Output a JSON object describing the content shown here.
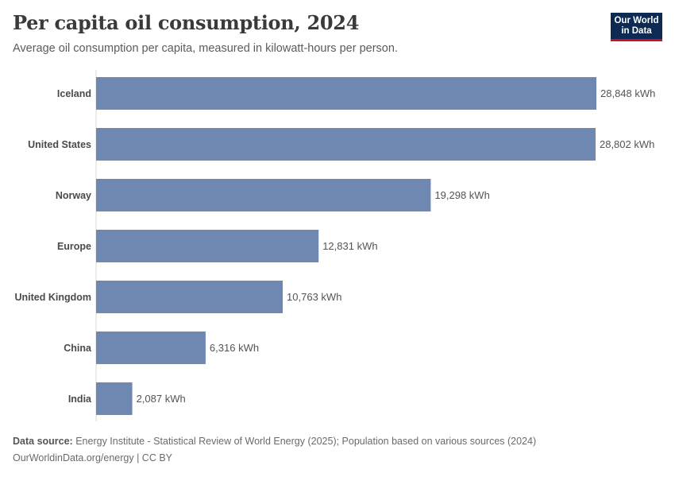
{
  "header": {
    "title": "Per capita oil consumption, 2024",
    "subtitle": "Average oil consumption per capita, measured in kilowatt-hours per person."
  },
  "logo": {
    "line1": "Our World",
    "line2": "in Data"
  },
  "footer": {
    "source_label": "Data source:",
    "source_text": "Energy Institute - Statistical Review of World Energy (2025); Population based on various sources (2024)",
    "credit": "OurWorldinData.org/energy | CC BY"
  },
  "colors": {
    "bar": "#6f88b1",
    "axis": "#d8d8d8",
    "logo_bg": "#0d2a52",
    "logo_accent": "#c8102e"
  },
  "chart_data": {
    "type": "bar",
    "orientation": "horizontal",
    "title": "Per capita oil consumption, 2024",
    "subtitle": "Average oil consumption per capita, measured in kilowatt-hours per person.",
    "unit": "kWh",
    "categories": [
      "Iceland",
      "United States",
      "Norway",
      "Europe",
      "United Kingdom",
      "China",
      "India"
    ],
    "values": [
      28848,
      28802,
      19298,
      12831,
      10763,
      6316,
      2087
    ],
    "value_labels": [
      "28,848 kWh",
      "28,802 kWh",
      "19,298 kWh",
      "12,831 kWh",
      "10,763 kWh",
      "6,316 kWh",
      "2,087 kWh"
    ],
    "xlim": [
      0,
      28848
    ],
    "grid": false,
    "legend": "none"
  }
}
